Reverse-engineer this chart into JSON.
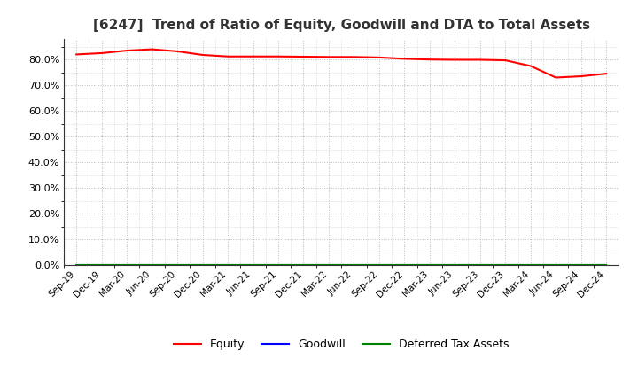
{
  "title": "[6247]  Trend of Ratio of Equity, Goodwill and DTA to Total Assets",
  "x_labels": [
    "Sep-19",
    "Dec-19",
    "Mar-20",
    "Jun-20",
    "Sep-20",
    "Dec-20",
    "Mar-21",
    "Jun-21",
    "Sep-21",
    "Dec-21",
    "Mar-22",
    "Jun-22",
    "Sep-22",
    "Dec-22",
    "Mar-23",
    "Jun-23",
    "Sep-23",
    "Dec-23",
    "Mar-24",
    "Jun-24",
    "Sep-24",
    "Dec-24"
  ],
  "equity": [
    0.82,
    0.825,
    0.835,
    0.84,
    0.832,
    0.818,
    0.812,
    0.812,
    0.812,
    0.811,
    0.81,
    0.81,
    0.808,
    0.803,
    0.8,
    0.799,
    0.799,
    0.797,
    0.775,
    0.73,
    0.735,
    0.745
  ],
  "goodwill": [
    0.001,
    0.001,
    0.001,
    0.001,
    0.001,
    0.001,
    0.001,
    0.001,
    0.001,
    0.001,
    0.001,
    0.001,
    0.001,
    0.001,
    0.001,
    0.001,
    0.001,
    0.001,
    0.001,
    0.001,
    0.001,
    0.001
  ],
  "dta": [
    0.001,
    0.001,
    0.001,
    0.001,
    0.001,
    0.001,
    0.001,
    0.001,
    0.001,
    0.001,
    0.001,
    0.001,
    0.001,
    0.001,
    0.001,
    0.001,
    0.001,
    0.001,
    0.001,
    0.001,
    0.001,
    0.001
  ],
  "equity_color": "#ff0000",
  "goodwill_color": "#0000ff",
  "dta_color": "#008000",
  "ylim": [
    0.0,
    0.88
  ],
  "yticks": [
    0.0,
    0.1,
    0.2,
    0.3,
    0.4,
    0.5,
    0.6,
    0.7,
    0.8
  ],
  "background_color": "#ffffff",
  "plot_bg_color": "#ffffff",
  "grid_color": "#bbbbbb",
  "title_fontsize": 11,
  "legend_labels": [
    "Equity",
    "Goodwill",
    "Deferred Tax Assets"
  ]
}
